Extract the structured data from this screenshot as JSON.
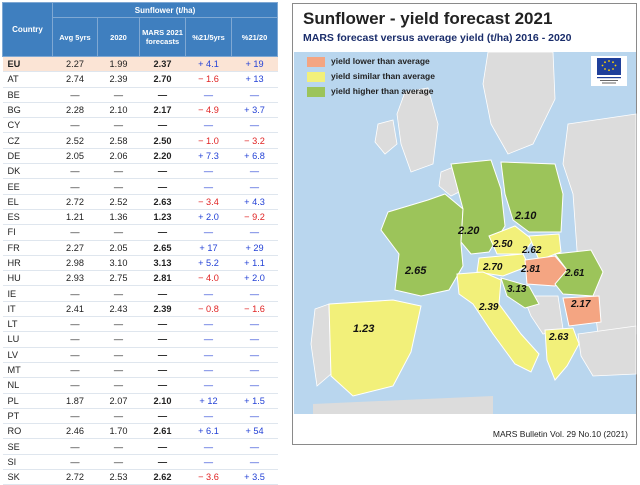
{
  "table": {
    "group_header": "Sunflower (t/ha)",
    "columns": [
      "Country",
      "Avg 5yrs",
      "2020",
      "MARS 2021 forecasts",
      "%21/5yrs",
      "%21/20"
    ],
    "rows": [
      {
        "country": "EU",
        "avg": "2.27",
        "y2020": "1.99",
        "f2021": "2.37",
        "p5": "+ 4.1",
        "p20": "+ 19"
      },
      {
        "country": "AT",
        "avg": "2.74",
        "y2020": "2.39",
        "f2021": "2.70",
        "p5": "− 1.6",
        "p20": "+ 13"
      },
      {
        "country": "BE",
        "avg": "—",
        "y2020": "—",
        "f2021": "—",
        "p5": "—",
        "p20": "—"
      },
      {
        "country": "BG",
        "avg": "2.28",
        "y2020": "2.10",
        "f2021": "2.17",
        "p5": "− 4.9",
        "p20": "+ 3.7"
      },
      {
        "country": "CY",
        "avg": "—",
        "y2020": "—",
        "f2021": "—",
        "p5": "—",
        "p20": "—"
      },
      {
        "country": "CZ",
        "avg": "2.52",
        "y2020": "2.58",
        "f2021": "2.50",
        "p5": "− 1.0",
        "p20": "− 3.2"
      },
      {
        "country": "DE",
        "avg": "2.05",
        "y2020": "2.06",
        "f2021": "2.20",
        "p5": "+ 7.3",
        "p20": "+ 6.8"
      },
      {
        "country": "DK",
        "avg": "—",
        "y2020": "—",
        "f2021": "—",
        "p5": "—",
        "p20": "—"
      },
      {
        "country": "EE",
        "avg": "—",
        "y2020": "—",
        "f2021": "—",
        "p5": "—",
        "p20": "—"
      },
      {
        "country": "EL",
        "avg": "2.72",
        "y2020": "2.52",
        "f2021": "2.63",
        "p5": "− 3.4",
        "p20": "+ 4.3"
      },
      {
        "country": "ES",
        "avg": "1.21",
        "y2020": "1.36",
        "f2021": "1.23",
        "p5": "+ 2.0",
        "p20": "− 9.2"
      },
      {
        "country": "FI",
        "avg": "—",
        "y2020": "—",
        "f2021": "—",
        "p5": "—",
        "p20": "—"
      },
      {
        "country": "FR",
        "avg": "2.27",
        "y2020": "2.05",
        "f2021": "2.65",
        "p5": "+ 17",
        "p20": "+ 29"
      },
      {
        "country": "HR",
        "avg": "2.98",
        "y2020": "3.10",
        "f2021": "3.13",
        "p5": "+ 5.2",
        "p20": "+ 1.1"
      },
      {
        "country": "HU",
        "avg": "2.93",
        "y2020": "2.75",
        "f2021": "2.81",
        "p5": "− 4.0",
        "p20": "+ 2.0"
      },
      {
        "country": "IE",
        "avg": "—",
        "y2020": "—",
        "f2021": "—",
        "p5": "—",
        "p20": "—"
      },
      {
        "country": "IT",
        "avg": "2.41",
        "y2020": "2.43",
        "f2021": "2.39",
        "p5": "− 0.8",
        "p20": "− 1.6"
      },
      {
        "country": "LT",
        "avg": "—",
        "y2020": "—",
        "f2021": "—",
        "p5": "—",
        "p20": "—"
      },
      {
        "country": "LU",
        "avg": "—",
        "y2020": "—",
        "f2021": "—",
        "p5": "—",
        "p20": "—"
      },
      {
        "country": "LV",
        "avg": "—",
        "y2020": "—",
        "f2021": "—",
        "p5": "—",
        "p20": "—"
      },
      {
        "country": "MT",
        "avg": "—",
        "y2020": "—",
        "f2021": "—",
        "p5": "—",
        "p20": "—"
      },
      {
        "country": "NL",
        "avg": "—",
        "y2020": "—",
        "f2021": "—",
        "p5": "—",
        "p20": "—"
      },
      {
        "country": "PL",
        "avg": "1.87",
        "y2020": "2.07",
        "f2021": "2.10",
        "p5": "+ 12",
        "p20": "+ 1.5"
      },
      {
        "country": "PT",
        "avg": "—",
        "y2020": "—",
        "f2021": "—",
        "p5": "—",
        "p20": "—"
      },
      {
        "country": "RO",
        "avg": "2.46",
        "y2020": "1.70",
        "f2021": "2.61",
        "p5": "+ 6.1",
        "p20": "+ 54"
      },
      {
        "country": "SE",
        "avg": "—",
        "y2020": "—",
        "f2021": "—",
        "p5": "—",
        "p20": "—"
      },
      {
        "country": "SI",
        "avg": "—",
        "y2020": "—",
        "f2021": "—",
        "p5": "—",
        "p20": "—"
      },
      {
        "country": "SK",
        "avg": "2.72",
        "y2020": "2.53",
        "f2021": "2.62",
        "p5": "− 3.6",
        "p20": "+ 3.5"
      }
    ]
  },
  "map": {
    "title": "Sunflower - yield forecast 2021",
    "subtitle": "MARS forecast versus average yield (t/ha) 2016 - 2020",
    "legend": [
      {
        "label": "yield lower than average",
        "color": "#f4a582"
      },
      {
        "label": "yield similar than average",
        "color": "#f2f07a"
      },
      {
        "label": "yield higher than average",
        "color": "#9cc45a"
      }
    ],
    "value_labels": {
      "PL": "2.10",
      "DE": "2.20",
      "CZ": "2.50",
      "SK": "2.62",
      "AT": "2.70",
      "HU": "2.81",
      "FR": "2.65",
      "RO": "2.61",
      "HR": "3.13",
      "IT": "2.39",
      "BG": "2.17",
      "ES": "1.23",
      "EL": "2.63"
    },
    "footer": "MARS Bulletin Vol. 29 No.10 (2021)",
    "colors": {
      "sea": "#b9d6ee",
      "land_other": "#dcdcdc",
      "higher": "#9cc45a",
      "similar": "#f2f07a",
      "lower": "#f4a582"
    }
  }
}
